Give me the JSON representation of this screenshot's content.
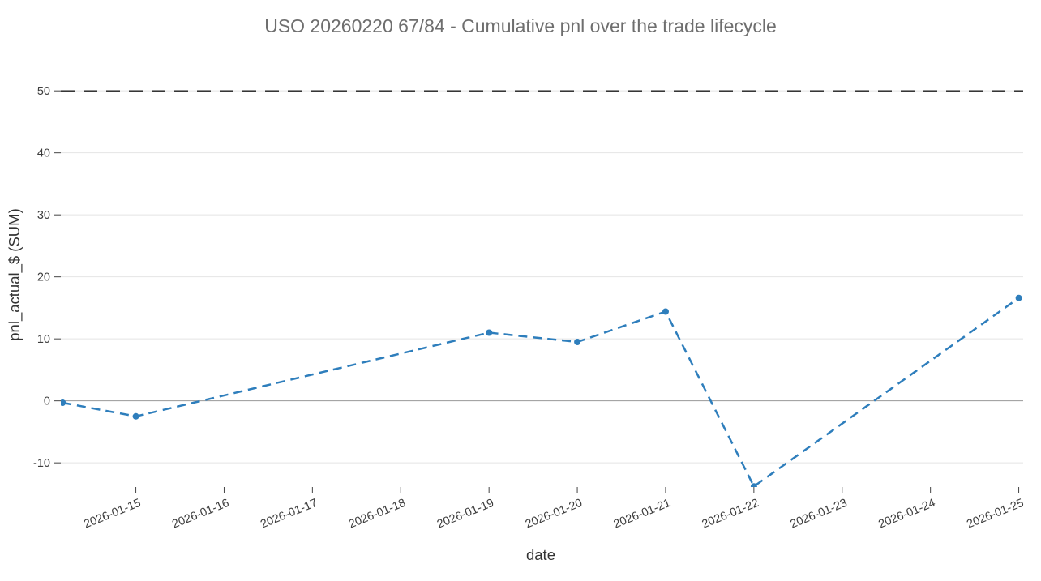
{
  "chart_data": {
    "type": "line",
    "title": "USO 20260220 67/84 - Cumulative pnl over the trade lifecycle",
    "xlabel": "date",
    "ylabel": "pnl_actual_$ (SUM)",
    "x_tick_labels": [
      "2026-01-15",
      "2026-01-16",
      "2026-01-17",
      "2026-01-18",
      "2026-01-19",
      "2026-01-20",
      "2026-01-21",
      "2026-01-22",
      "2026-01-23",
      "2026-01-24",
      "2026-01-25"
    ],
    "y_ticks": [
      -10,
      0,
      10,
      20,
      30,
      40,
      50
    ],
    "x_range_days": [
      -0.85,
      10.05
    ],
    "y_range": [
      -13.9,
      52.9
    ],
    "grid": true,
    "legend": "none",
    "reference_line": {
      "y": 50,
      "style": "dashed",
      "color": "#1a1a1a"
    },
    "series": [
      {
        "name": "pnl_actual_$ (SUM)",
        "color": "#2e7ebc",
        "line_style": "dashed",
        "marker": "circle",
        "points": [
          {
            "date": "2026-01-14",
            "day": -0.83,
            "value": -0.3
          },
          {
            "date": "2026-01-15",
            "day": 0,
            "value": -2.5
          },
          {
            "date": "2026-01-19",
            "day": 4,
            "value": 11.0
          },
          {
            "date": "2026-01-20",
            "day": 5,
            "value": 9.5
          },
          {
            "date": "2026-01-21",
            "day": 6,
            "value": 14.4
          },
          {
            "date": "2026-01-22",
            "day": 7,
            "value": -13.8
          },
          {
            "date": "2026-01-25",
            "day": 10,
            "value": 16.6
          }
        ]
      }
    ],
    "colors": {
      "grid": "#e4e4e4",
      "zero_line": "#989898",
      "tick_mark": "#444444",
      "title_text": "#6e6e6e",
      "axis_text": "#333333"
    }
  }
}
